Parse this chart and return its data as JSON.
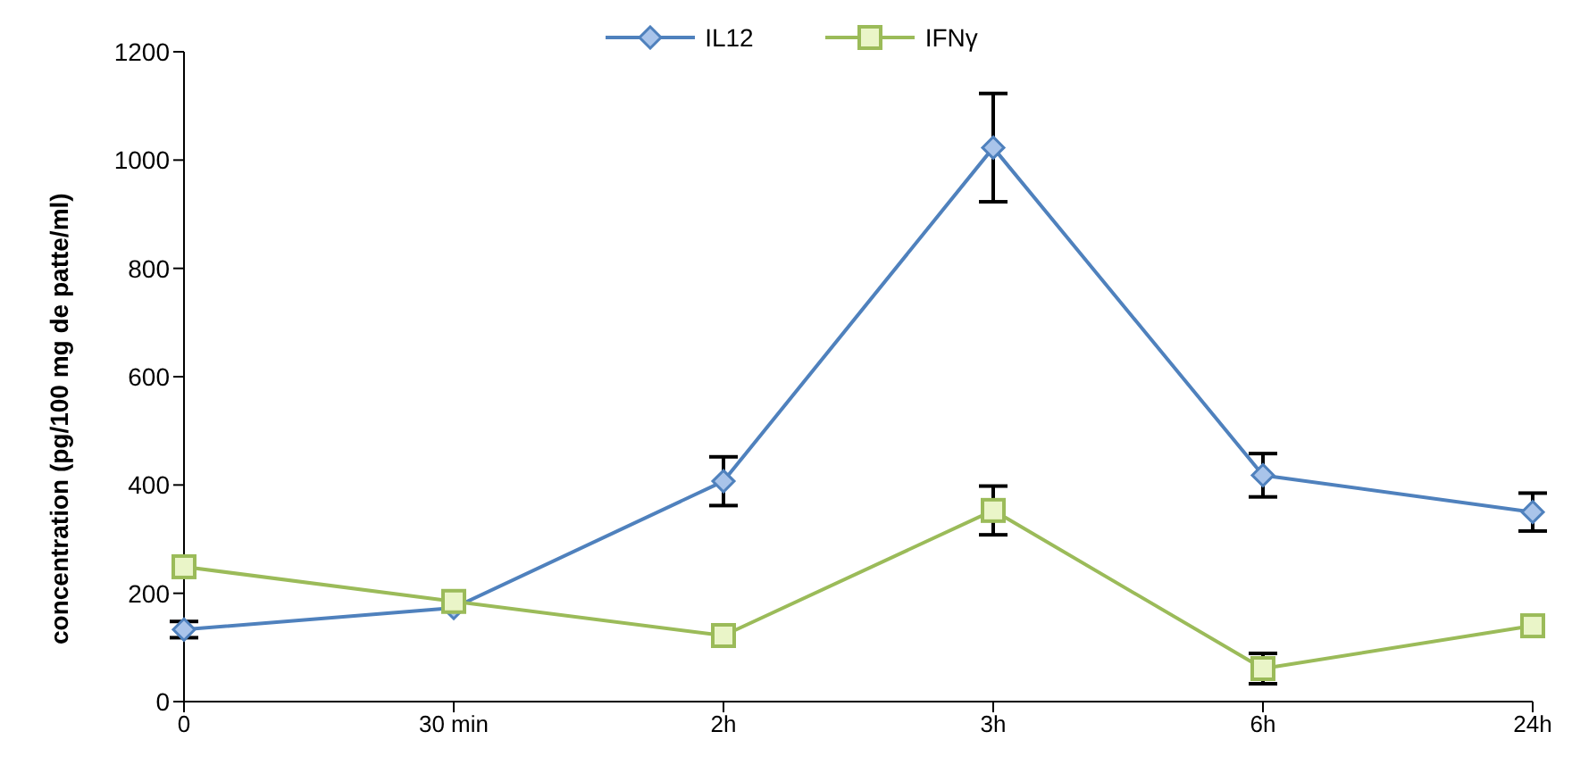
{
  "chart_data": {
    "type": "line",
    "ylabel": "concentration (pg/100 mg de patte/ml)",
    "categories": [
      "0",
      "30 min",
      "2h",
      "3h",
      "6h",
      "24h"
    ],
    "series": [
      {
        "name": "IL12",
        "color": "#4f81bd",
        "marker": "diamond",
        "values": [
          133,
          173,
          407,
          1023,
          418,
          350
        ],
        "errors": [
          15,
          null,
          45,
          100,
          40,
          35
        ]
      },
      {
        "name": "IFNγ",
        "color": "#9bbb59",
        "marker": "square",
        "values": [
          249,
          185,
          122,
          353,
          61,
          140
        ],
        "errors": [
          null,
          null,
          null,
          45,
          28,
          null
        ]
      }
    ],
    "ylim": [
      0,
      1200
    ],
    "yticks": [
      0,
      200,
      400,
      600,
      800,
      1000,
      1200
    ],
    "grid": false,
    "legend": "top"
  }
}
